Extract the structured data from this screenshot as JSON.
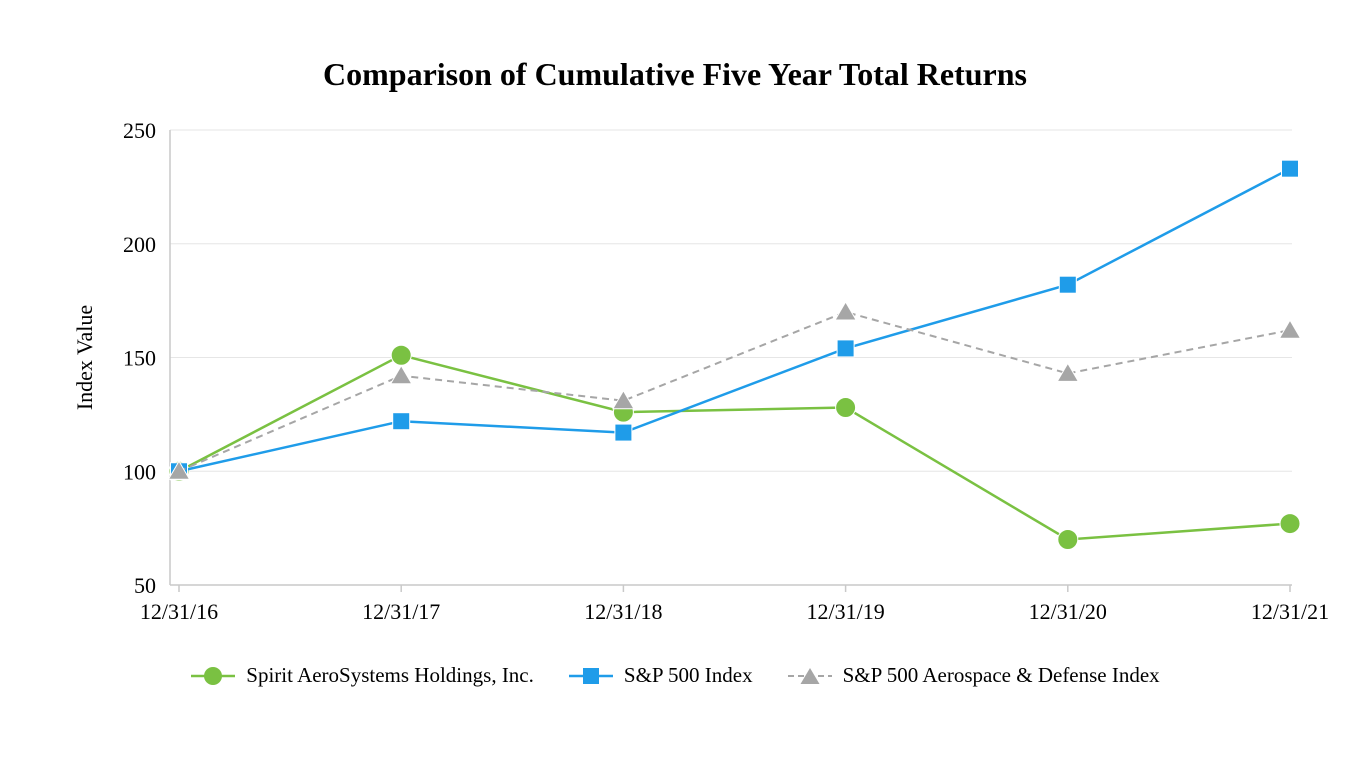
{
  "page": {
    "background": "#ffffff"
  },
  "chart_data": {
    "type": "line",
    "title": "Comparison of Cumulative Five Year Total Returns",
    "xlabel": "",
    "ylabel": "Index Value",
    "categories": [
      "12/31/16",
      "12/31/17",
      "12/31/18",
      "12/31/19",
      "12/31/20",
      "12/31/21"
    ],
    "ylim": [
      50,
      250
    ],
    "yticks": [
      50,
      100,
      150,
      200,
      250
    ],
    "grid": "horizontal",
    "legend_position": "bottom",
    "colors": {
      "grid": "#e6e6e6",
      "axis": "#c9c9c9",
      "text": "#000000"
    },
    "series": [
      {
        "id": "spirit",
        "name": "Spirit AeroSystems Holdings, Inc.",
        "color": "#7ac142",
        "marker": "circle",
        "line_style": "solid",
        "values": [
          100,
          151,
          126,
          128,
          70,
          77
        ]
      },
      {
        "id": "sp500",
        "name": "S&P 500 Index",
        "color": "#1f9ce9",
        "marker": "square",
        "line_style": "solid",
        "values": [
          100,
          122,
          117,
          154,
          182,
          233
        ]
      },
      {
        "id": "aero-defense",
        "name": "S&P 500 Aerospace & Defense Index",
        "color": "#a6a6a6",
        "marker": "triangle",
        "line_style": "dashed",
        "values": [
          100,
          142,
          131,
          170,
          143,
          162
        ]
      }
    ]
  }
}
